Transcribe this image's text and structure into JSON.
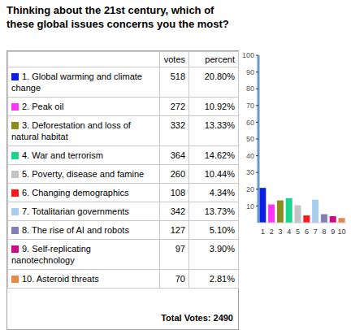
{
  "title": "Thinking about the 21st century, which of these global issues concerns you the most?",
  "table": {
    "header": [
      "votes",
      "percent"
    ],
    "rows": [
      {
        "label": "1. Global warming and climate change",
        "votes": 518,
        "percent": "20.80%"
      },
      {
        "label": "2. Peak oil",
        "votes": 272,
        "percent": "10.92%"
      },
      {
        "label": "3. Deforestation and loss of natural habitat",
        "votes": 332,
        "percent": "13.33%"
      },
      {
        "label": "4. War and terrorism",
        "votes": 364,
        "percent": "14.62%"
      },
      {
        "label": "5. Poverty, disease and famine",
        "votes": 260,
        "percent": "10.44%"
      },
      {
        "label": "6. Changing demographics",
        "votes": 108,
        "percent": "4.34%"
      },
      {
        "label": "7. Totalitarian governments",
        "votes": 342,
        "percent": "13.73%"
      },
      {
        "label": "8. The rise of AI and robots",
        "votes": 127,
        "percent": "5.10%"
      },
      {
        "label": "9. Self-replicating nanotechnology",
        "votes": 97,
        "percent": "3.90%"
      },
      {
        "label": "10. Asteroid threats",
        "votes": 70,
        "percent": "2.81%"
      }
    ],
    "total_label": "Total Votes:",
    "total_votes": 2490
  },
  "chart_data": {
    "type": "bar",
    "categories": [
      "1",
      "2",
      "3",
      "4",
      "5",
      "6",
      "7",
      "8",
      "9",
      "10"
    ],
    "values": [
      20.8,
      10.92,
      13.33,
      14.62,
      10.44,
      4.34,
      13.73,
      5.1,
      3.9,
      2.81
    ],
    "colors": [
      "#0a1ee6",
      "#ff33ff",
      "#8c8c1e",
      "#19d68f",
      "#c4c4c4",
      "#ff1a1a",
      "#a6cdee",
      "#8080b8",
      "#cc0a88",
      "#e8874a"
    ],
    "ylim": [
      0,
      100
    ],
    "yticks": [
      10,
      20,
      30,
      40,
      50,
      60,
      70,
      80,
      90,
      100
    ],
    "grid": false
  }
}
